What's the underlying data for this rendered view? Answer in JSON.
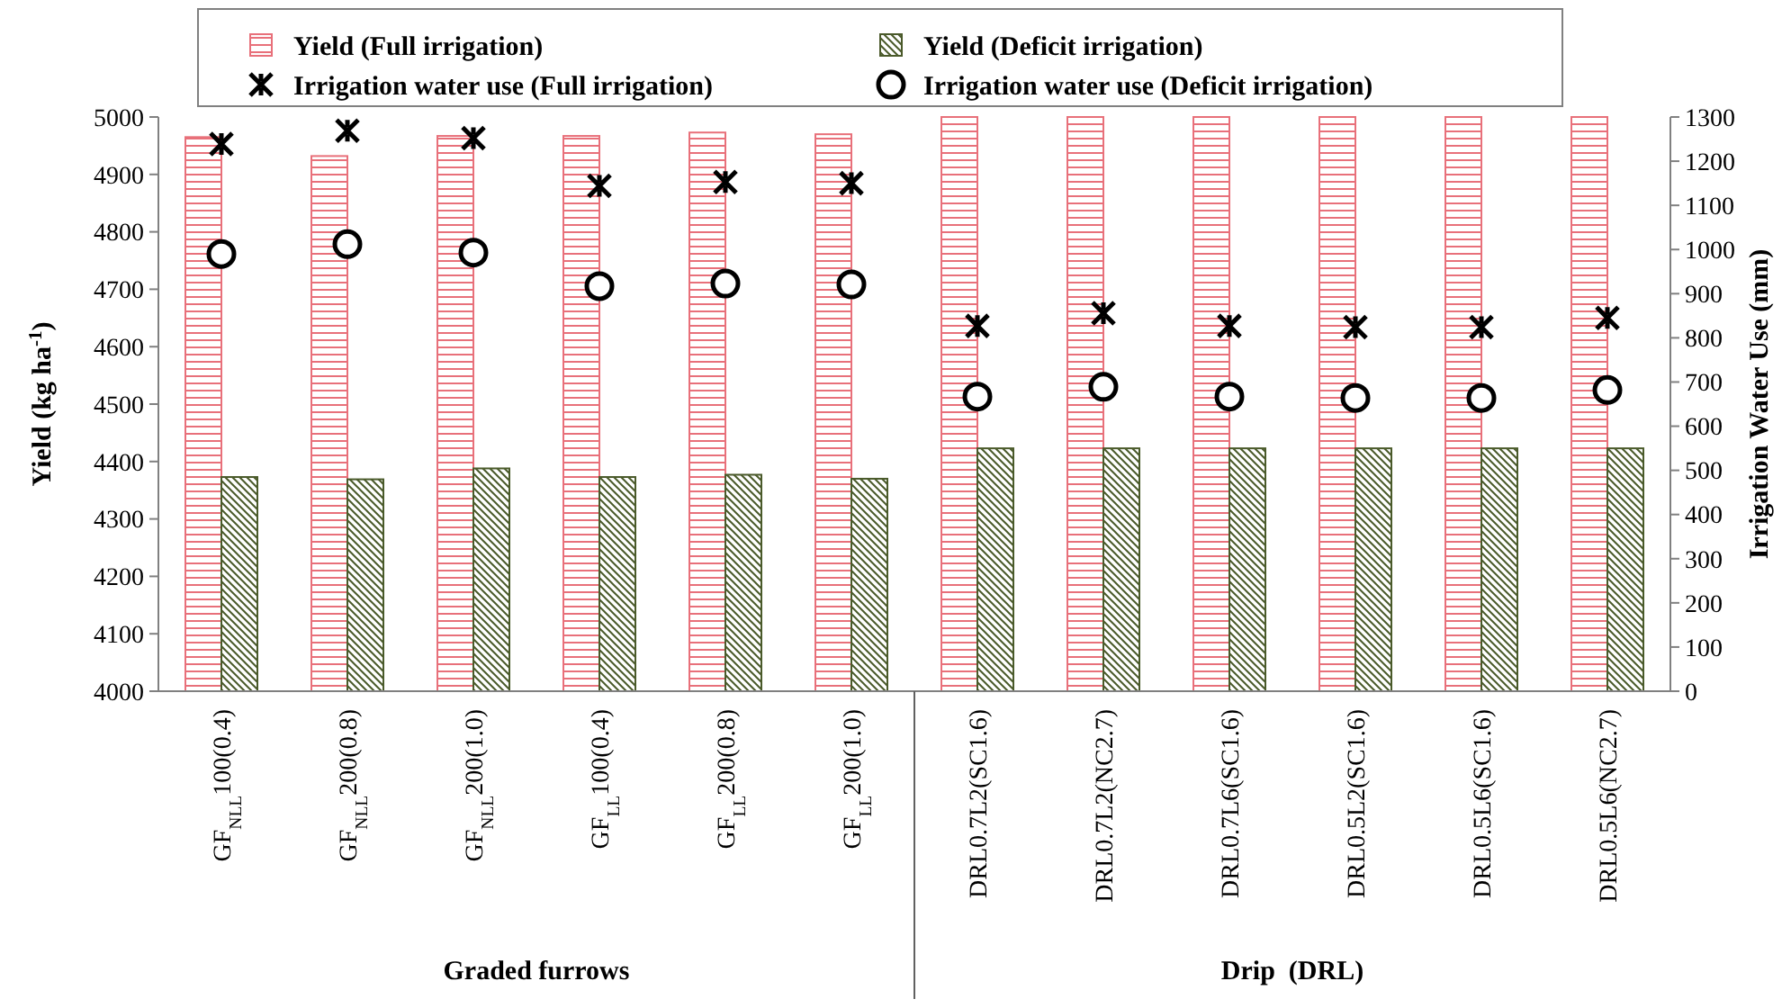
{
  "chart_data": {
    "type": "bar",
    "categories": [
      "GF$_{NLL}$100(0.4)",
      "GF$_{NLL}$200(0.8)",
      "GF$_{NLL}$200(1.0)",
      "GF$_{LL}$100(0.4)",
      "GF$_{LL}$200(0.8)",
      "GF$_{LL}$200(1.0)",
      "DRL0.7L2(SC1.6)",
      "DRL0.7L2(NC2.7)",
      "DRL0.7L6(SC1.6)",
      "DRL0.5L2(SC1.6)",
      "DRL0.5L6(SC1.6)",
      "DRL0.5L6(NC2.7)"
    ],
    "ylabel": "Yield (kg ha$^{-1}$)",
    "y2label": "Irrigation Water Use (mm)",
    "ylim": [
      4000,
      5000
    ],
    "yticks": [
      4000,
      4100,
      4200,
      4300,
      4400,
      4500,
      4600,
      4700,
      4800,
      4900,
      5000
    ],
    "y2lim": [
      0,
      1300
    ],
    "y2ticks": [
      0,
      100,
      200,
      300,
      400,
      500,
      600,
      700,
      800,
      900,
      1000,
      1100,
      1200,
      1300
    ],
    "legend": "top",
    "grid": false,
    "annotations": [
      "Graded furrows",
      "Drip  (DRL)"
    ],
    "series": [
      {
        "name": "Yield (Full irrigation)",
        "color": "#e8707a",
        "values": [
          4965,
          4932,
          4967,
          4967,
          4973,
          4970,
          5000,
          5000,
          5000,
          5000,
          5000,
          5000
        ]
      },
      {
        "name": "Yield (Deficit irrigation)",
        "color": "#4a5a2a",
        "values": [
          4373,
          4369,
          4388,
          4373,
          4377,
          4370,
          4423,
          4423,
          4423,
          4423,
          4423,
          4423
        ]
      },
      {
        "name": "Irrigation water use (Full irrigation)",
        "type": "scatter",
        "axis": "y2",
        "marker": "cross",
        "color": "#000000",
        "values": [
          1239,
          1269,
          1252,
          1144,
          1153,
          1150,
          827,
          856,
          827,
          824,
          824,
          845
        ]
      },
      {
        "name": "Irrigation water use (Deficit irrigation)",
        "type": "scatter",
        "axis": "y2",
        "marker": "circle",
        "color": "#000000",
        "values": [
          990,
          1012,
          993,
          917,
          923,
          921,
          667,
          689,
          667,
          664,
          664,
          682
        ]
      }
    ]
  }
}
